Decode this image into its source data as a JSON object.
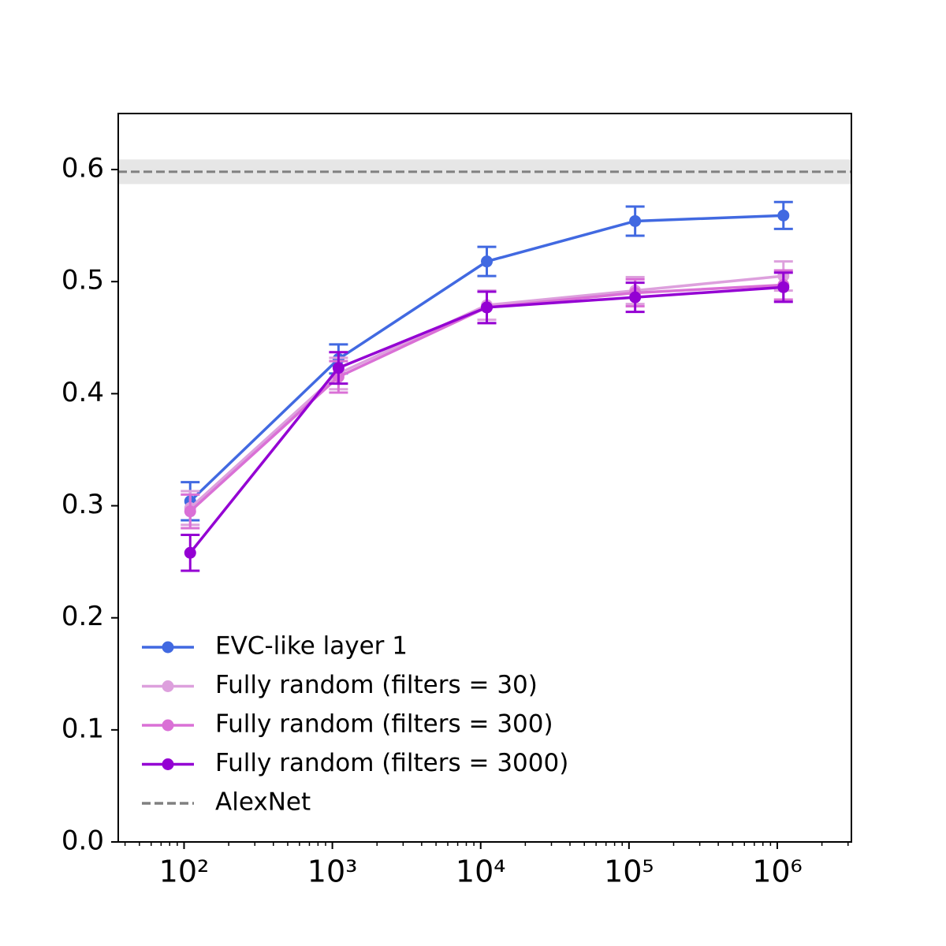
{
  "chart_data": {
    "type": "line",
    "x": [
      110,
      1100,
      11000,
      110000,
      1100000
    ],
    "series": [
      {
        "name": "EVC-like layer 1",
        "color": "#4169e1",
        "values": [
          0.304,
          0.431,
          0.518,
          0.554,
          0.559
        ],
        "errors": [
          0.017,
          0.013,
          0.013,
          0.013,
          0.012
        ]
      },
      {
        "name": "Fully random (filters = 30)",
        "color": "#dda0dd",
        "values": [
          0.298,
          0.418,
          0.479,
          0.492,
          0.505
        ],
        "errors": [
          0.015,
          0.014,
          0.013,
          0.012,
          0.013
        ]
      },
      {
        "name": "Fully random (filters = 300)",
        "color": "#da70d6",
        "values": [
          0.295,
          0.415,
          0.477,
          0.49,
          0.497
        ],
        "errors": [
          0.015,
          0.014,
          0.014,
          0.012,
          0.013
        ]
      },
      {
        "name": "Fully random (filters = 3000)",
        "color": "#9400d3",
        "values": [
          0.258,
          0.423,
          0.477,
          0.486,
          0.495
        ],
        "errors": [
          0.016,
          0.014,
          0.014,
          0.013,
          0.013
        ]
      }
    ],
    "reference": {
      "name": "AlexNet",
      "value": 0.598,
      "band": [
        0.587,
        0.609
      ],
      "color": "#808080"
    },
    "xscale": "log",
    "xlim": [
      36,
      3160000
    ],
    "xticks": [
      {
        "value": 100,
        "label": "10²"
      },
      {
        "value": 1000,
        "label": "10³"
      },
      {
        "value": 10000,
        "label": "10⁴"
      },
      {
        "value": 100000,
        "label": "10⁵"
      },
      {
        "value": 1000000,
        "label": "10⁶"
      }
    ],
    "xminorticks": [
      40,
      50,
      60,
      70,
      80,
      90,
      200,
      300,
      400,
      500,
      600,
      700,
      800,
      900,
      2000,
      3000,
      4000,
      5000,
      6000,
      7000,
      8000,
      9000,
      20000,
      30000,
      40000,
      50000,
      60000,
      70000,
      80000,
      90000,
      200000,
      300000,
      400000,
      500000,
      600000,
      700000,
      800000,
      900000,
      2000000,
      3000000
    ],
    "ylim": [
      0,
      0.65
    ],
    "yticks": [
      {
        "value": 0,
        "label": "0.0"
      },
      0.1,
      0.2,
      0.3,
      0.4,
      0.5,
      0.6
    ],
    "legend": "lower left"
  }
}
